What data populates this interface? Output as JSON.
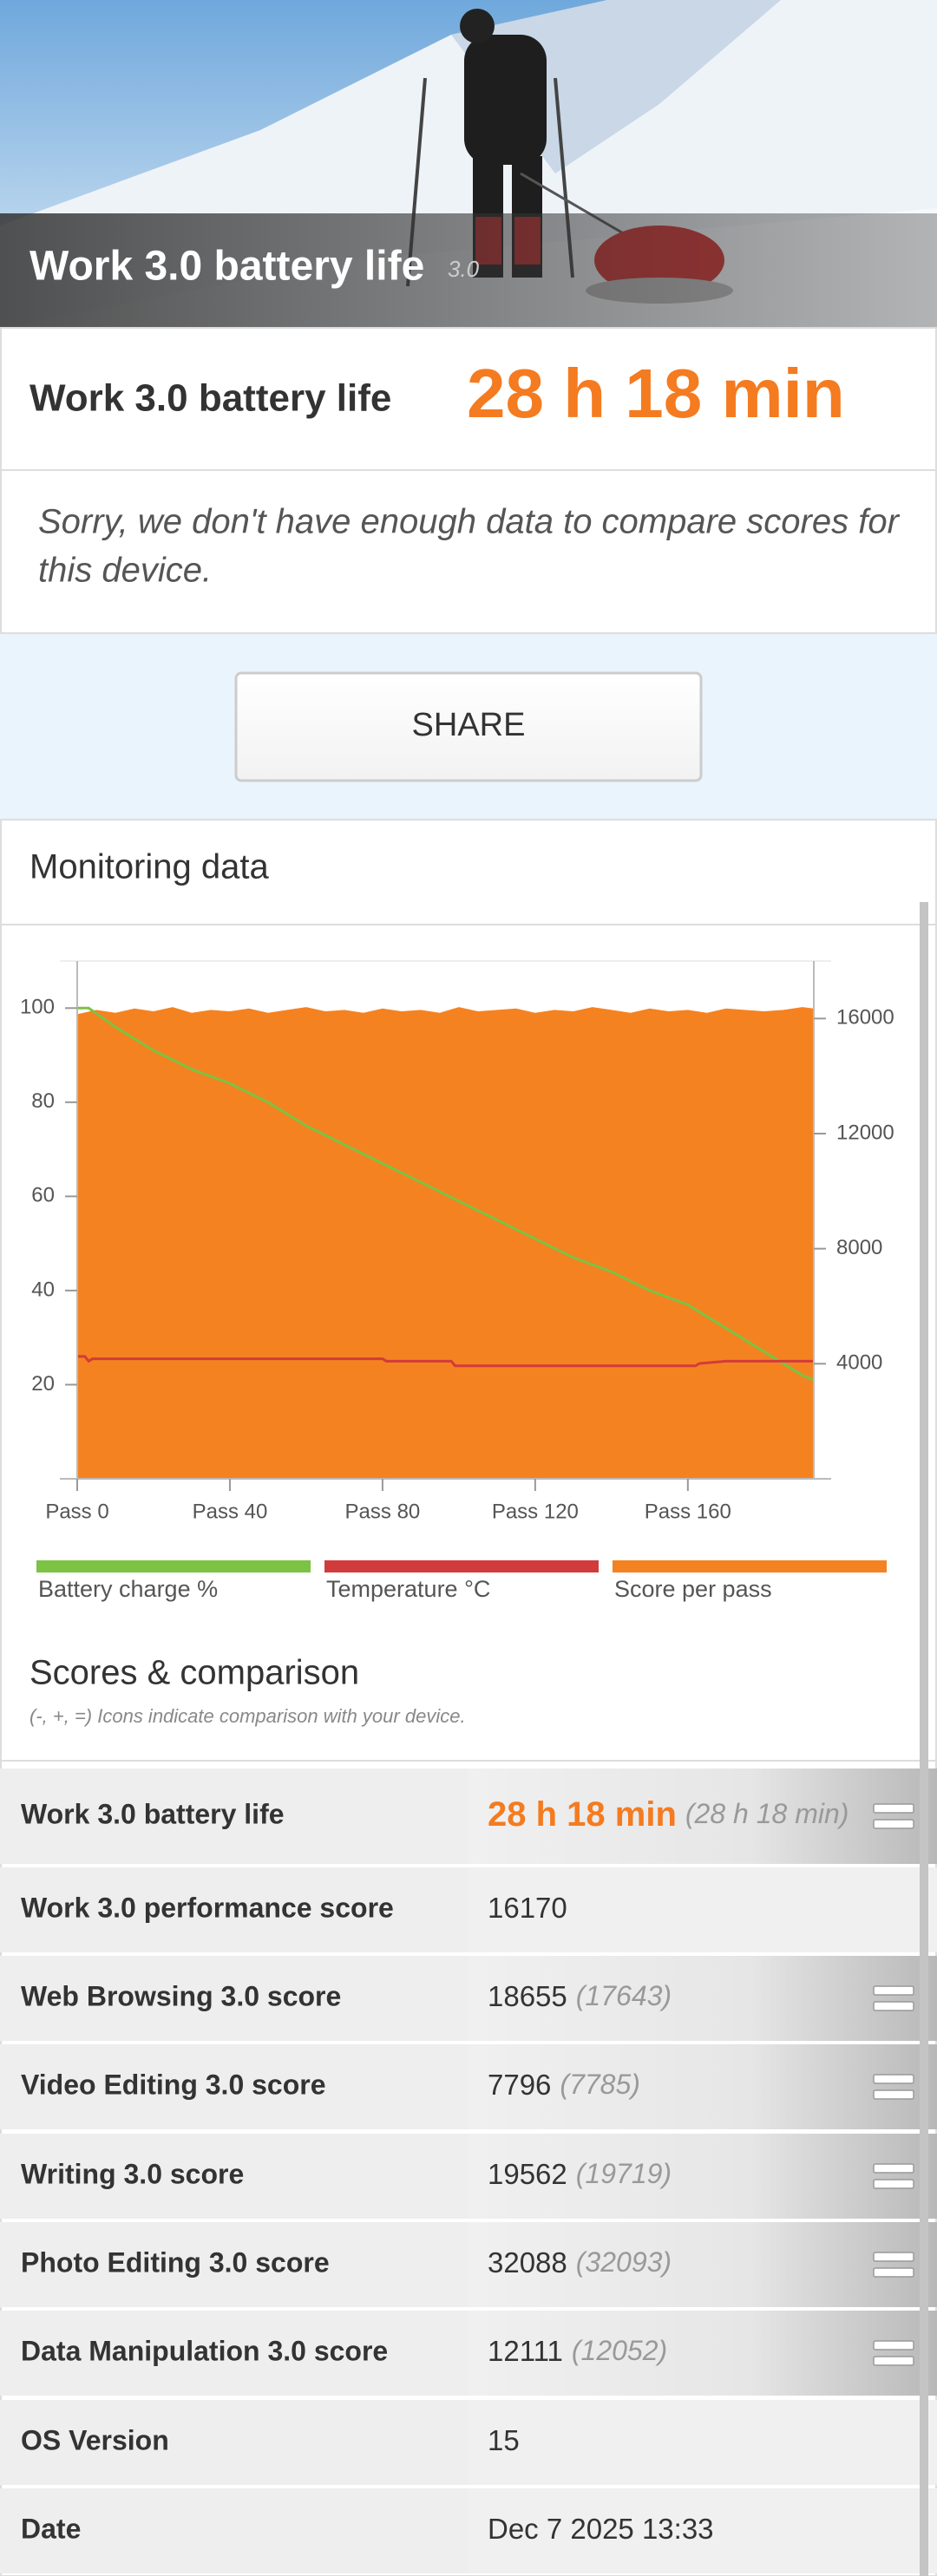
{
  "hero": {
    "title": "Work 3.0 battery life",
    "version": "3.0"
  },
  "result": {
    "label": "Work 3.0 battery life",
    "value": "28 h 18 min"
  },
  "note": {
    "lines": [
      "Sorry, we don't have enough data to compare scores for",
      "this device."
    ]
  },
  "share_button": "SHARE",
  "monitoring": {
    "title": "Monitoring data"
  },
  "chart_data": {
    "type": "area-line",
    "xlim": [
      0,
      193
    ],
    "xticks": [
      {
        "value": 0,
        "label": "Pass 0"
      },
      {
        "value": 40,
        "label": "Pass 40"
      },
      {
        "value": 80,
        "label": "Pass 80"
      },
      {
        "value": 120,
        "label": "Pass 120"
      },
      {
        "value": 160,
        "label": "Pass 160"
      }
    ],
    "ylim": [
      0,
      110
    ],
    "yticks": [
      20,
      40,
      60,
      80,
      100
    ],
    "y2lim": [
      0,
      18000
    ],
    "y2ticks": [
      4000,
      8000,
      12000,
      16000
    ],
    "series": [
      {
        "name": "Battery charge %",
        "color": "#7cc243",
        "kind": "line",
        "x": [
          0,
          3,
          10,
          20,
          30,
          40,
          50,
          60,
          70,
          80,
          90,
          100,
          110,
          120,
          130,
          140,
          150,
          160,
          170,
          180,
          190,
          193
        ],
        "values": [
          100,
          100,
          96,
          91,
          87,
          84,
          80,
          75,
          71,
          67,
          63,
          59,
          55,
          51,
          47,
          44,
          40,
          37,
          32,
          27,
          22,
          21
        ]
      },
      {
        "name": "Temperature °C",
        "color": "#d23b3b",
        "kind": "line",
        "x": [
          0,
          2,
          3,
          4,
          80,
          81,
          98,
          99,
          162,
          163,
          170,
          193
        ],
        "values": [
          26,
          26,
          25,
          25.5,
          25.5,
          25,
          25,
          24,
          24,
          24.5,
          25,
          25
        ]
      },
      {
        "name": "Score per pass",
        "color": "#f58220",
        "kind": "area",
        "axis": "y2",
        "x": [
          0,
          5,
          10,
          15,
          20,
          25,
          30,
          35,
          40,
          45,
          50,
          55,
          60,
          65,
          70,
          75,
          80,
          85,
          90,
          95,
          100,
          105,
          110,
          115,
          120,
          125,
          130,
          135,
          140,
          145,
          150,
          155,
          160,
          165,
          170,
          175,
          180,
          185,
          190,
          193
        ],
        "values": [
          16150,
          16300,
          16200,
          16350,
          16250,
          16400,
          16200,
          16300,
          16250,
          16350,
          16200,
          16300,
          16400,
          16250,
          16300,
          16200,
          16350,
          16250,
          16300,
          16200,
          16400,
          16250,
          16300,
          16350,
          16200,
          16300,
          16250,
          16400,
          16300,
          16200,
          16350,
          16250,
          16300,
          16200,
          16350,
          16300,
          16250,
          16300,
          16400,
          16350
        ]
      }
    ]
  },
  "scores": {
    "title": "Scores & comparison",
    "subtitle": "(-, +, =) Icons indicate comparison with your device.",
    "rows": [
      {
        "label": "Work 3.0 battery life",
        "value": "28 h 18 min",
        "comparison": "(28 h 18 min)"
      },
      {
        "label": "Work 3.0 performance score",
        "value": "16170"
      },
      {
        "label": "Web Browsing 3.0 score",
        "value": "18655",
        "comparison": "(17643)"
      },
      {
        "label": "Video Editing 3.0 score",
        "value": "7796",
        "comparison": "(7785)"
      },
      {
        "label": "Writing 3.0 score",
        "value": "19562",
        "comparison": "(19719)"
      },
      {
        "label": "Photo Editing 3.0 score",
        "value": "32088",
        "comparison": "(32093)"
      },
      {
        "label": "Data Manipulation 3.0 score",
        "value": "12111",
        "comparison": "(12052)"
      },
      {
        "label": "OS Version",
        "value": "15"
      },
      {
        "label": "Date",
        "value": "Dec 7 2025 13:33"
      }
    ]
  }
}
